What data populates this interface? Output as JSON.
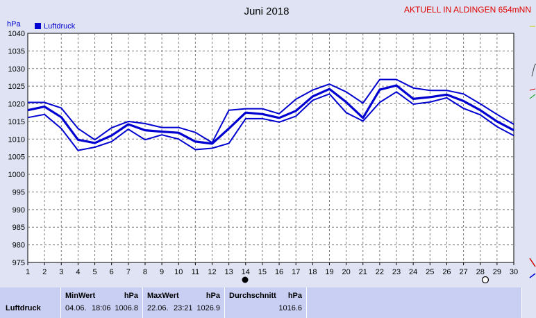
{
  "header": {
    "title": "Juni 2018",
    "status": "AKTUELL IN ALDINGEN 654mNN"
  },
  "chart_data": {
    "type": "line",
    "title": "Juni 2018",
    "ylabel": "hPa",
    "ylim": [
      975,
      1040
    ],
    "yticks": [
      975,
      980,
      985,
      990,
      995,
      1000,
      1005,
      1010,
      1015,
      1020,
      1025,
      1030,
      1035,
      1040
    ],
    "x": [
      1,
      2,
      3,
      4,
      5,
      6,
      7,
      8,
      9,
      10,
      11,
      12,
      13,
      14,
      15,
      16,
      17,
      18,
      19,
      20,
      21,
      22,
      23,
      24,
      25,
      26,
      27,
      28,
      29,
      30
    ],
    "grid": true,
    "legend": {
      "label": "Luftdruck",
      "color": "#0000d0",
      "placement": "top-left"
    },
    "series": [
      {
        "name": "Luftdruck",
        "role": "max",
        "values": [
          1020.4,
          1020.4,
          1018.8,
          1013.0,
          1009.8,
          1013.2,
          1015.0,
          1014.4,
          1013.3,
          1013.3,
          1011.9,
          1009.0,
          1018.2,
          1018.6,
          1018.6,
          1017.2,
          1021.3,
          1023.9,
          1025.6,
          1023.4,
          1020.2,
          1026.9,
          1026.9,
          1024.5,
          1023.8,
          1023.8,
          1022.8,
          1020.0,
          1017.0,
          1014.2
        ]
      },
      {
        "name": "Luftdruck",
        "role": "mean",
        "values": [
          1018.2,
          1019.2,
          1016.2,
          1009.8,
          1008.9,
          1011.0,
          1014.2,
          1012.5,
          1012.1,
          1011.8,
          1009.3,
          1008.7,
          1013.0,
          1017.5,
          1017.1,
          1016.0,
          1018.0,
          1022.1,
          1024.2,
          1020.5,
          1016.0,
          1024.0,
          1025.2,
          1021.4,
          1021.9,
          1022.6,
          1020.8,
          1018.2,
          1015.0,
          1012.5
        ]
      },
      {
        "name": "Luftdruck",
        "role": "min",
        "values": [
          1016.1,
          1017.0,
          1013.0,
          1006.8,
          1007.7,
          1009.3,
          1012.8,
          1009.8,
          1011.2,
          1010.0,
          1007.0,
          1007.4,
          1008.8,
          1015.8,
          1015.8,
          1014.8,
          1016.5,
          1021.0,
          1022.8,
          1017.5,
          1015.1,
          1020.4,
          1023.4,
          1019.9,
          1020.5,
          1021.7,
          1018.7,
          1016.9,
          1013.5,
          1011.0
        ]
      }
    ]
  },
  "stats": {
    "row_label": "Luftdruck",
    "min": {
      "label": "MinWert",
      "unit": "hPa",
      "date": "04.06.",
      "time": "18:06",
      "value": "1006.8"
    },
    "max": {
      "label": "MaxWert",
      "unit": "hPa",
      "date": "22.06.",
      "time": "23:21",
      "value": "1026.9"
    },
    "avg": {
      "label": "Durchschnitt",
      "unit": "hPa",
      "value": "1016.6"
    }
  },
  "colors": {
    "series": "#0000d0",
    "status": "#e00000",
    "plot_bg": "#ffffff",
    "page_bg": "#dfe3f3",
    "stats_bg": "#c9cff2"
  }
}
